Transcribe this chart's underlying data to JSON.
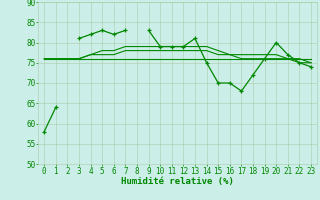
{
  "x": [
    0,
    1,
    2,
    3,
    4,
    5,
    6,
    7,
    8,
    9,
    10,
    11,
    12,
    13,
    14,
    15,
    16,
    17,
    18,
    19,
    20,
    21,
    22,
    23
  ],
  "line_marked": [
    58,
    64,
    null,
    81,
    82,
    83,
    82,
    83,
    null,
    83,
    79,
    79,
    79,
    81,
    75,
    70,
    70,
    68,
    72,
    76,
    80,
    77,
    75,
    74
  ],
  "line_flat1": [
    76,
    76,
    76,
    76,
    76,
    76,
    76,
    76,
    76,
    76,
    76,
    76,
    76,
    76,
    76,
    76,
    76,
    76,
    76,
    76,
    76,
    76,
    76,
    76
  ],
  "line_flat2": [
    76,
    76,
    76,
    76,
    77,
    77,
    77,
    78,
    78,
    78,
    78,
    78,
    78,
    78,
    78,
    77,
    77,
    77,
    77,
    77,
    77,
    76,
    76,
    75
  ],
  "line_flat3": [
    76,
    76,
    76,
    76,
    77,
    78,
    78,
    79,
    79,
    79,
    79,
    79,
    79,
    79,
    79,
    78,
    77,
    76,
    76,
    76,
    76,
    76,
    75,
    75
  ],
  "background_color": "#cceee8",
  "grid_color": "#aaccaa",
  "line_color": "#008800",
  "xlabel": "Humidité relative (%)",
  "ylim": [
    50,
    90
  ],
  "xlim_left": -0.5,
  "xlim_right": 23.5,
  "yticks": [
    50,
    55,
    60,
    65,
    70,
    75,
    80,
    85,
    90
  ],
  "xticks": [
    0,
    1,
    2,
    3,
    4,
    5,
    6,
    7,
    8,
    9,
    10,
    11,
    12,
    13,
    14,
    15,
    16,
    17,
    18,
    19,
    20,
    21,
    22,
    23
  ],
  "tick_fontsize": 5.5,
  "xlabel_fontsize": 6.5,
  "figwidth": 3.2,
  "figheight": 2.0,
  "dpi": 100
}
